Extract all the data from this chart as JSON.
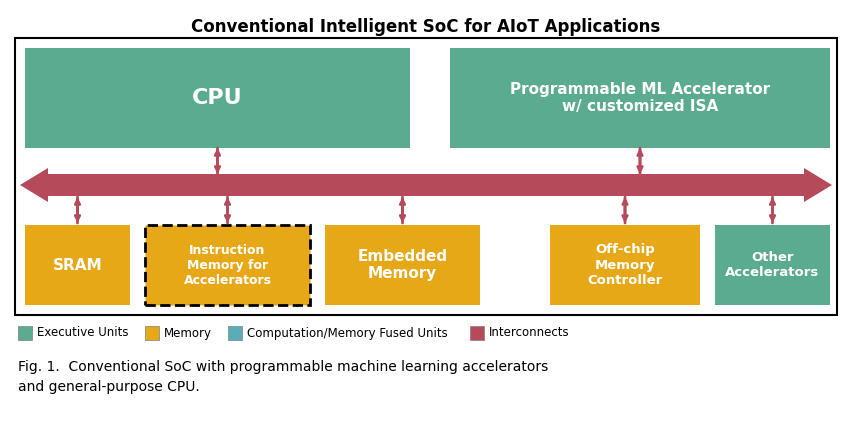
{
  "title": "Conventional Intelligent SoC for AIoT Applications",
  "title_fontsize": 12,
  "fig_caption_line1": "Fig. 1.  Conventional SoC with programmable machine learning accelerators",
  "fig_caption_line2": "and general-purpose CPU.",
  "colors": {
    "green": "#5aab8f",
    "gold": "#e6a817",
    "teal": "#5aacb8",
    "red_arrow": "#b54a5a",
    "white": "#ffffff",
    "black": "#000000",
    "bg": "#ffffff"
  },
  "legend_items": [
    {
      "label": "Executive Units",
      "color": "#5aab8f"
    },
    {
      "label": "Memory",
      "color": "#e6a817"
    },
    {
      "label": "Computation/Memory Fused Units",
      "color": "#5aacb8"
    },
    {
      "label": "Interconnects",
      "color": "#b54a5a"
    }
  ]
}
